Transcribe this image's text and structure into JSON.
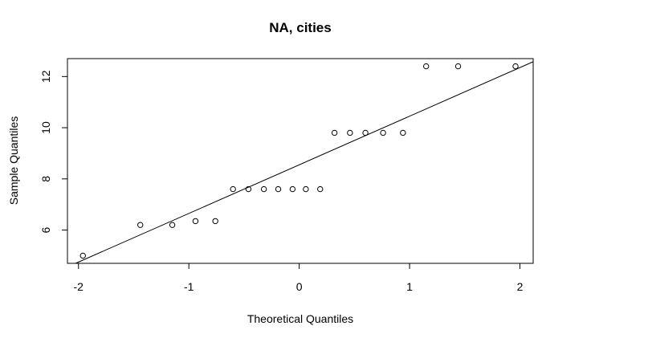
{
  "chart_data": {
    "type": "scatter",
    "title": "NA, cities",
    "xlabel": "Theoretical Quantiles",
    "ylabel": "Sample Quantiles",
    "xlim": [
      -2.1,
      2.12
    ],
    "ylim": [
      4.7,
      12.7
    ],
    "xticks": [
      -2,
      -1,
      0,
      1,
      2
    ],
    "yticks": [
      6,
      8,
      10,
      12
    ],
    "grid": false,
    "x": [
      -1.96,
      -1.44,
      -1.15,
      -0.94,
      -0.76,
      -0.6,
      -0.46,
      -0.32,
      -0.19,
      -0.06,
      0.06,
      0.19,
      0.32,
      0.46,
      0.6,
      0.76,
      0.94,
      1.15,
      1.44,
      1.96
    ],
    "y": [
      5.0,
      6.2,
      6.2,
      6.35,
      6.35,
      7.6,
      7.6,
      7.6,
      7.6,
      7.6,
      7.6,
      7.6,
      9.8,
      9.8,
      9.8,
      9.8,
      9.8,
      12.4,
      12.4,
      12.4
    ],
    "reference_line": {
      "intercept": 8.55,
      "slope": 1.9
    }
  }
}
